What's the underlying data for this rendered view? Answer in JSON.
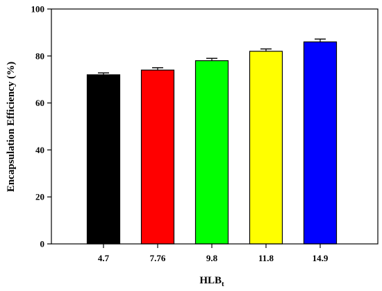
{
  "chart_data": {
    "type": "bar",
    "categories": [
      "4.7",
      "7.76",
      "9.8",
      "11.8",
      "14.9"
    ],
    "values": [
      72,
      74,
      78,
      82,
      86
    ],
    "errors": [
      0.8,
      1.0,
      1.0,
      1.0,
      1.2
    ],
    "colors": [
      "#000000",
      "#ff0000",
      "#00ff00",
      "#ffff00",
      "#0000ff"
    ],
    "xlabel": "HLB",
    "xlabel_subscript": "t",
    "ylabel": "Encapsulation Efficiency (%)",
    "ylim": [
      0,
      100
    ],
    "yticks": [
      0,
      20,
      40,
      60,
      80,
      100
    ],
    "grid": false,
    "legend": "none"
  }
}
